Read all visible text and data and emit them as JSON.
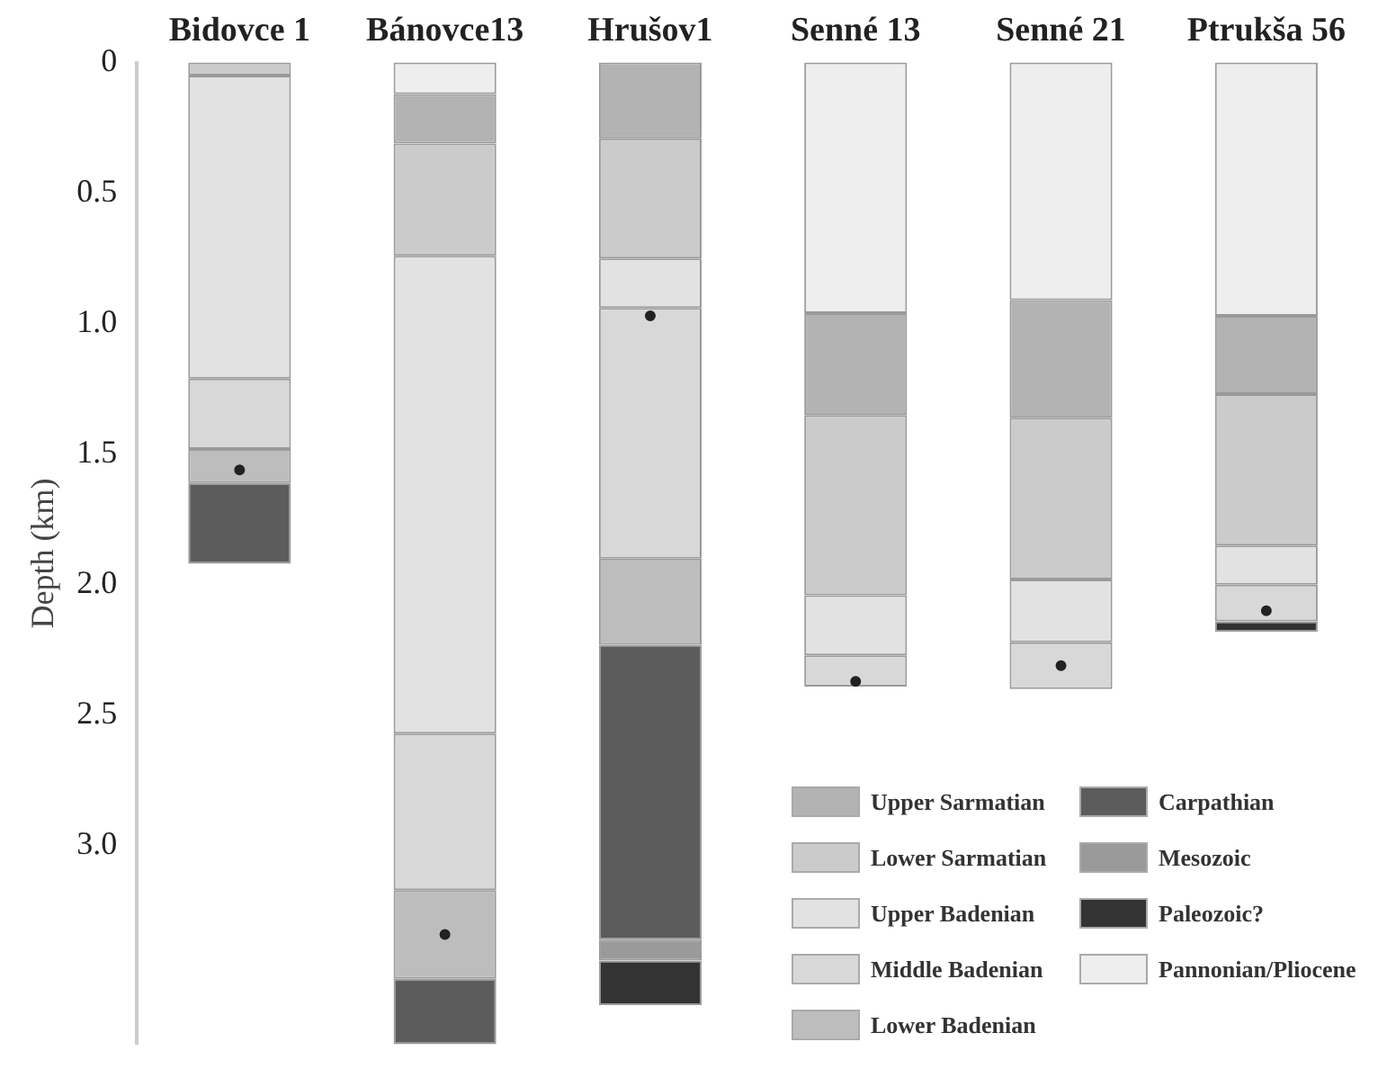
{
  "chart_data": {
    "type": "bar",
    "ylabel": "Depth (km)",
    "categories": [
      "Bidovce 1",
      "Bánovce13",
      "Hrušov1",
      "Senné 13",
      "Senné 21",
      "Ptrukša 56"
    ],
    "ylim": [
      3.76,
      0
    ],
    "yticks": [
      0,
      0.5,
      {
        "value": 1,
        "label": "1.0"
      },
      1.5,
      {
        "value": 2,
        "label": "2.0"
      },
      2.5,
      {
        "value": 3,
        "label": "3.0"
      }
    ],
    "legend": "bottom right",
    "series": [
      {
        "name": "Upper Sarmatian",
        "color": "#b3b3b3",
        "base": [
          null,
          0.12,
          0,
          0.96,
          0.91,
          0.97
        ],
        "values": [
          null,
          0.19,
          0.29,
          0.39,
          0.45,
          0.3
        ]
      },
      {
        "name": "Lower Sarmatian",
        "color": "#cbcbcb",
        "base": [
          0,
          0.31,
          0.29,
          1.35,
          1.36,
          1.27
        ],
        "values": [
          0.05,
          0.43,
          0.46,
          0.69,
          0.62,
          0.58
        ]
      },
      {
        "name": "Upper Badenian",
        "color": "#e2e2e2",
        "base": [
          0.05,
          0.74,
          0.75,
          2.04,
          1.98,
          1.85
        ],
        "values": [
          1.16,
          1.83,
          0.19,
          0.23,
          0.24,
          0.15
        ]
      },
      {
        "name": "Middle Badenian",
        "color": "#d8d8d8",
        "base": [
          1.21,
          2.57,
          0.94,
          2.27,
          2.22,
          2.0
        ],
        "values": [
          0.27,
          0.6,
          0.96,
          0.12,
          0.18,
          0.14
        ]
      },
      {
        "name": "Lower Badenian",
        "color": "#bdbdbd",
        "base": [
          1.48,
          3.17,
          1.9,
          null,
          null,
          null
        ],
        "values": [
          0.13,
          0.34,
          0.33,
          null,
          null,
          null
        ]
      },
      {
        "name": "Carpathian",
        "color": "#5c5c5c",
        "base": [
          1.61,
          3.51,
          2.23,
          null,
          null,
          null
        ],
        "values": [
          0.31,
          0.25,
          1.13,
          null,
          null,
          null
        ]
      },
      {
        "name": "Mesozoic",
        "color": "#9a9a9a",
        "base": [
          null,
          null,
          3.36,
          null,
          null,
          null
        ],
        "values": [
          null,
          null,
          0.08,
          null,
          null,
          null
        ]
      },
      {
        "name": "Paleozoic?",
        "color": "#333333",
        "base": [
          null,
          null,
          3.44,
          null,
          null,
          2.14
        ],
        "values": [
          null,
          null,
          0.17,
          null,
          null,
          0.04
        ]
      },
      {
        "name": "Pannonian/Pliocene",
        "color": "#eeeeee",
        "base": [
          null,
          0,
          null,
          0,
          0,
          0
        ],
        "values": [
          null,
          0.12,
          null,
          0.96,
          0.91,
          0.97
        ]
      },
      {
        "type": "scatter",
        "color": "#222222",
        "marker": "circle",
        "x": [
          "Bidovce 1",
          "Bánovce13",
          "Hrušov1",
          "Senné 13",
          "Senné 21",
          "Ptrukša 56"
        ],
        "values": [
          1.56,
          3.34,
          0.97,
          2.37,
          2.31,
          2.1
        ]
      }
    ]
  }
}
